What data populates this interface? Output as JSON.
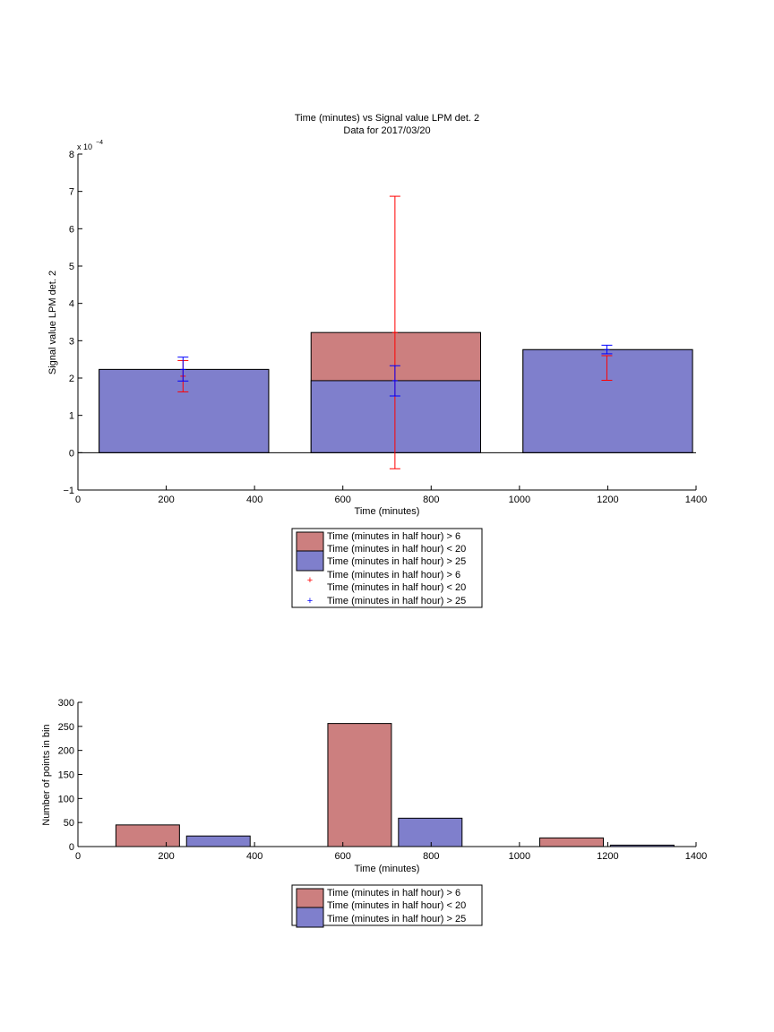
{
  "chart_data": [
    {
      "type": "bar",
      "title": "Time (minutes) vs Signal value LPM det. 2",
      "subtitle": "Data for 2017/03/20",
      "xlabel": "Time (minutes)",
      "ylabel": "Signal value LPM det. 2",
      "y_exponent_base": "x 10",
      "y_exponent_power": "−4",
      "xlim": [
        0,
        1400
      ],
      "ylim": [
        -1,
        8
      ],
      "xticks": [
        0,
        200,
        400,
        600,
        800,
        1000,
        1200,
        1400
      ],
      "yticks": [
        -1,
        0,
        1,
        2,
        3,
        4,
        5,
        6,
        7,
        8
      ],
      "grid": false,
      "legend_placement": "below",
      "series": [
        {
          "name": "Time (minutes in half hour) > 6\nTime (minutes in half hour) < 20",
          "color": "#cc7f7f",
          "bars": [
            {
              "x0": 48,
              "x1": 432,
              "value": 2.23
            },
            {
              "x0": 528,
              "x1": 912,
              "value": 3.22
            },
            {
              "x0": 1008,
              "x1": 1392,
              "value": 2.76
            }
          ]
        },
        {
          "name": "Time (minutes in half hour) > 25",
          "color": "#7f7fcc",
          "bars": [
            {
              "x0": 48,
              "x1": 432,
              "value": 2.23
            },
            {
              "x0": 528,
              "x1": 912,
              "value": 1.93
            },
            {
              "x0": 1008,
              "x1": 1392,
              "value": 2.76
            }
          ]
        }
      ],
      "errorbars": [
        {
          "name": "Time (minutes in half hour) > 6\nTime (minutes in half hour) < 20",
          "color": "#ff0000",
          "points": [
            {
              "x": 238,
              "y": 2.05,
              "low": 1.63,
              "high": 2.47
            },
            {
              "x": 718,
              "y": 3.22,
              "low": -0.43,
              "high": 6.87
            },
            {
              "x": 1198,
              "y": 2.6,
              "low": 1.94,
              "high": 2.6
            }
          ]
        },
        {
          "name": "Time (minutes in half hour) > 25",
          "color": "#0000ff",
          "points": [
            {
              "x": 238,
              "y": 2.23,
              "low": 1.92,
              "high": 2.56
            },
            {
              "x": 718,
              "y": 1.93,
              "low": 1.52,
              "high": 2.33
            },
            {
              "x": 1198,
              "y": 2.76,
              "low": 2.65,
              "high": 2.88
            }
          ]
        }
      ],
      "legend": [
        "Time (minutes in half hour) > 6",
        "Time (minutes in half hour) < 20",
        "Time (minutes in half hour) > 25",
        "Time (minutes in half hour) > 6",
        "Time (minutes in half hour) < 20",
        "Time (minutes in half hour) > 25"
      ]
    },
    {
      "type": "bar",
      "xlabel": "Time (minutes)",
      "ylabel": "Number of points in bin",
      "xlim": [
        0,
        1400
      ],
      "ylim": [
        0,
        300
      ],
      "xticks": [
        0,
        200,
        400,
        600,
        800,
        1000,
        1200,
        1400
      ],
      "yticks": [
        0,
        50,
        100,
        150,
        200,
        250,
        300
      ],
      "grid": false,
      "legend_placement": "below",
      "series": [
        {
          "name": "Time (minutes in half hour) > 6\nTime (minutes in half hour) < 20",
          "color": "#cc7f7f",
          "bars": [
            {
              "x0": 86,
              "x1": 230,
              "value": 45
            },
            {
              "x0": 566,
              "x1": 710,
              "value": 256
            },
            {
              "x0": 1046,
              "x1": 1190,
              "value": 18
            }
          ]
        },
        {
          "name": "Time (minutes in half hour) > 25",
          "color": "#7f7fcc",
          "bars": [
            {
              "x0": 246,
              "x1": 390,
              "value": 22
            },
            {
              "x0": 726,
              "x1": 870,
              "value": 59
            },
            {
              "x0": 1206,
              "x1": 1350,
              "value": 3
            }
          ]
        }
      ],
      "legend": [
        "Time (minutes in half hour) > 6",
        "Time (minutes in half hour) < 20",
        "Time (minutes in half hour) > 25"
      ]
    }
  ]
}
